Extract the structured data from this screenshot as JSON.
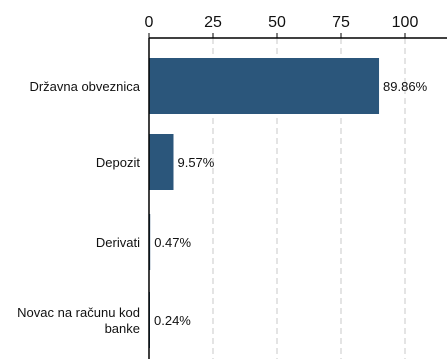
{
  "chart_data": {
    "type": "bar",
    "orientation": "horizontal",
    "categories": [
      "Državna obveznica",
      "Depozit",
      "Derivati",
      "Novac na računu kod banke"
    ],
    "category_lines": [
      [
        "Državna obveznica"
      ],
      [
        "Depozit"
      ],
      [
        "Derivati"
      ],
      [
        "Novac na računu kod",
        "banke"
      ]
    ],
    "values": [
      89.86,
      9.57,
      0.47,
      0.24
    ],
    "data_labels": [
      "89.86%",
      "9.57%",
      "0.47%",
      "0.24%"
    ],
    "xticks": [
      0,
      25,
      50,
      75,
      100
    ],
    "xtick_labels": [
      "0",
      "25",
      "50",
      "75",
      "100"
    ],
    "xlim": [
      0,
      116
    ],
    "x_axis_position": "top",
    "grid": "vertical dashed",
    "bar_color": "#2b567b",
    "grid_color": "#c8c8c8",
    "axis_color": "#000000",
    "title": "",
    "xlabel": "",
    "ylabel": ""
  }
}
